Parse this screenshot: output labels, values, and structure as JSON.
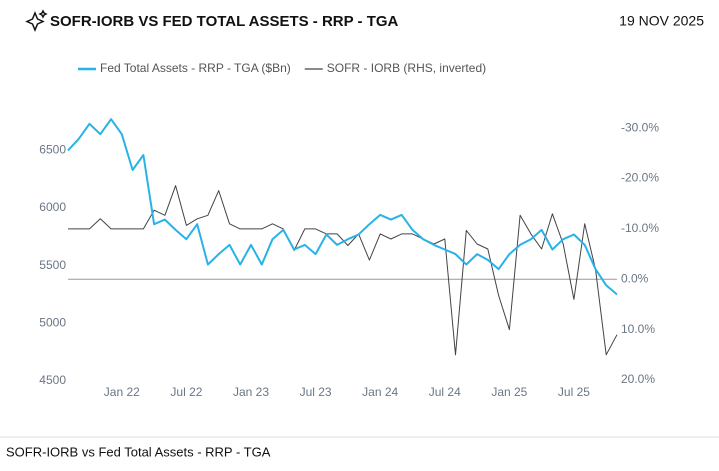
{
  "chart_data": {
    "type": "line",
    "title": "SOFR-IORB VS FED TOTAL ASSETS - RRP - TGA",
    "date": "19 NOV 2025",
    "footer": "SOFR-IORB vs Fed Total Assets - RRP - TGA",
    "x": [
      "2021-08",
      "2021-09",
      "2021-10",
      "2021-11",
      "2021-12",
      "2022-01",
      "2022-02",
      "2022-03",
      "2022-04",
      "2022-05",
      "2022-06",
      "2022-07",
      "2022-08",
      "2022-09",
      "2022-10",
      "2022-11",
      "2022-12",
      "2023-01",
      "2023-02",
      "2023-03",
      "2023-04",
      "2023-05",
      "2023-06",
      "2023-07",
      "2023-08",
      "2023-09",
      "2023-10",
      "2023-11",
      "2023-12",
      "2024-01",
      "2024-02",
      "2024-03",
      "2024-04",
      "2024-05",
      "2024-06",
      "2024-07",
      "2024-08",
      "2024-09",
      "2024-10",
      "2024-11",
      "2024-12",
      "2025-01",
      "2025-02",
      "2025-03",
      "2025-04",
      "2025-05",
      "2025-06",
      "2025-07",
      "2025-08",
      "2025-09",
      "2025-10",
      "2025-11"
    ],
    "xlim": [
      "2021-08",
      "2025-11"
    ],
    "xticks": [
      {
        "value": "2022-01",
        "label": "Jan 22"
      },
      {
        "value": "2022-07",
        "label": "Jul 22"
      },
      {
        "value": "2023-01",
        "label": "Jan 23"
      },
      {
        "value": "2023-07",
        "label": "Jul 23"
      },
      {
        "value": "2024-01",
        "label": "Jan 24"
      },
      {
        "value": "2024-07",
        "label": "Jul 24"
      },
      {
        "value": "2025-01",
        "label": "Jan 25"
      },
      {
        "value": "2025-07",
        "label": "Jul 25"
      }
    ],
    "ylim": [
      4500,
      6850
    ],
    "yticks": [
      4500,
      5000,
      5500,
      6000,
      6500
    ],
    "y2lim": [
      -33.6,
      20.2
    ],
    "y2_inverted": true,
    "y2ticks": [
      {
        "value": -30,
        "label": "-30.0%"
      },
      {
        "value": -20,
        "label": "-20.0%"
      },
      {
        "value": -10,
        "label": "-10.0%"
      },
      {
        "value": 0,
        "label": "0.0%"
      },
      {
        "value": 10,
        "label": "10.0%"
      },
      {
        "value": 20,
        "label": "20.0%"
      }
    ],
    "series": [
      {
        "name": "Fed Total Assets - RRP - TGA ($Bn)",
        "color": "#29b2e8",
        "values": [
          6500,
          6600,
          6730,
          6640,
          6770,
          6640,
          6330,
          6460,
          5860,
          5900,
          5810,
          5730,
          5860,
          5510,
          5600,
          5680,
          5510,
          5680,
          5510,
          5730,
          5810,
          5640,
          5680,
          5600,
          5770,
          5680,
          5730,
          5770,
          5860,
          5940,
          5900,
          5940,
          5810,
          5730,
          5680,
          5640,
          5600,
          5510,
          5600,
          5550,
          5470,
          5600,
          5680,
          5730,
          5810,
          5640,
          5730,
          5770,
          5680,
          5470,
          5330,
          5250
        ]
      },
      {
        "name": "SOFR - IORB (RHS, inverted)",
        "color": "#444444",
        "axis": "y2",
        "values": [
          -10,
          -10,
          -10,
          -12,
          -10,
          -10,
          -10,
          -10,
          -13.7,
          -12.7,
          -18.6,
          -10.7,
          -12,
          -12.7,
          -17.6,
          -11,
          -10,
          -10,
          -10,
          -11,
          -10,
          -5.7,
          -10,
          -10,
          -9,
          -9,
          -6.7,
          -9,
          -3.8,
          -9,
          -8,
          -9,
          -9,
          -8,
          -7,
          -8,
          15,
          -9.7,
          -7,
          -6,
          3.2,
          10,
          -12.7,
          -9,
          -6,
          -13,
          -7,
          4,
          -11,
          -2,
          15,
          11
        ]
      }
    ]
  }
}
